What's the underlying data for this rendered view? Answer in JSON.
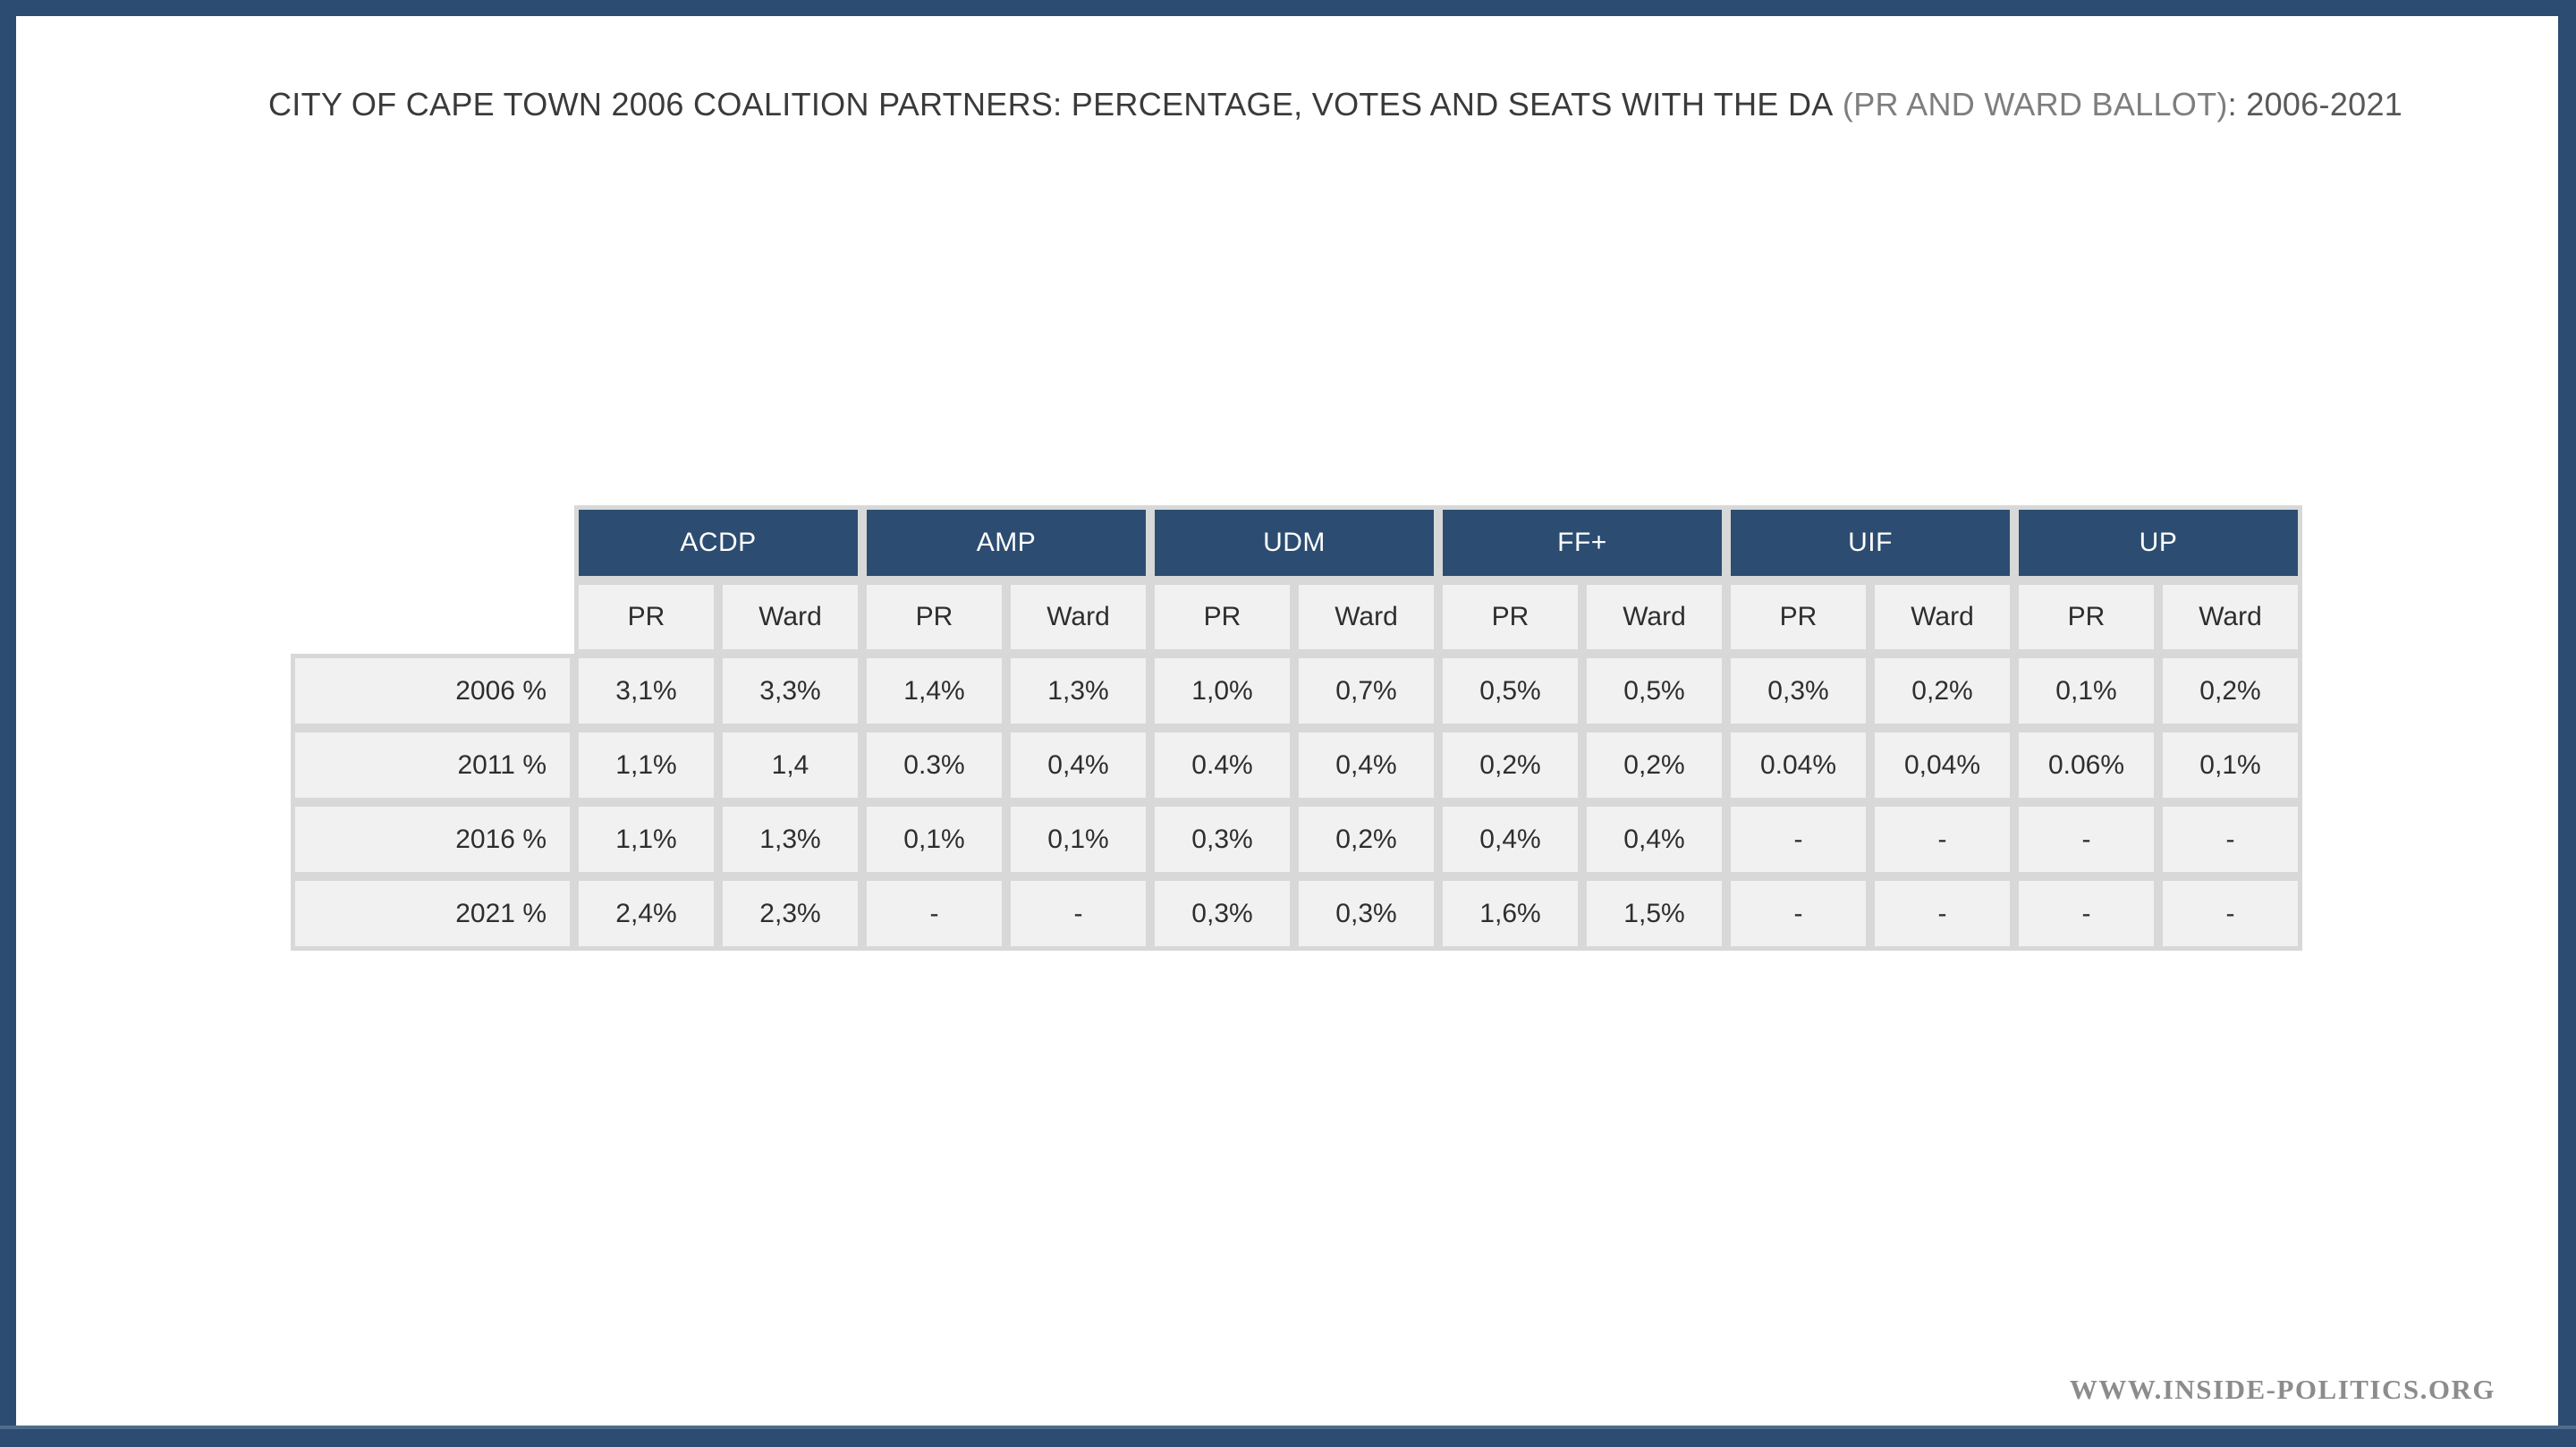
{
  "slide": {
    "title": {
      "main": "CITY OF CAPE TOWN 2006 COALITION PARTNERS: PERCENTAGE, VOTES AND SEATS WITH THE DA",
      "muted": " (PR AND WARD BALLOT)",
      "suffix": ": 2006-2021"
    },
    "watermark": "WWW.INSIDE-POLITICS.ORG"
  },
  "colors": {
    "frame_navy": "#2C4D71",
    "frame_bottom_highlight": "#4E6C8C",
    "header_navy": "#2C4D71",
    "grid_grout": "#D8D8D8",
    "cell_bg": "#F1F1F1",
    "title_dark": "#3A3A3C",
    "title_muted": "#7E7E7E",
    "title_suffix": "#58585A",
    "cell_text": "#2E2E2E",
    "watermark_gray": "#8C8C8C"
  },
  "chart_data": {
    "type": "table",
    "title": "CITY OF CAPE TOWN 2006 COALITION PARTNERS: PERCENTAGE, VOTES AND SEATS WITH THE DA (PR AND WARD BALLOT): 2006-2021",
    "party_groups": [
      "ACDP",
      "AMP",
      "UDM",
      "FF+",
      "UIF",
      "UP"
    ],
    "sub_columns": [
      "PR",
      "Ward"
    ],
    "row_labels": [
      "2006 %",
      "2011 %",
      "2016 %",
      "2021 %"
    ],
    "rows": [
      [
        "3,1%",
        "3,3%",
        "1,4%",
        "1,3%",
        "1,0%",
        "0,7%",
        "0,5%",
        "0,5%",
        "0,3%",
        "0,2%",
        "0,1%",
        "0,2%"
      ],
      [
        "1,1%",
        "1,4",
        "0.3%",
        "0,4%",
        "0.4%",
        "0,4%",
        "0,2%",
        "0,2%",
        "0.04%",
        "0,04%",
        "0.06%",
        "0,1%"
      ],
      [
        "1,1%",
        "1,3%",
        "0,1%",
        "0,1%",
        "0,3%",
        "0,2%",
        "0,4%",
        "0,4%",
        "-",
        "-",
        "-",
        "-"
      ],
      [
        "2,4%",
        "2,3%",
        "-",
        "-",
        "0,3%",
        "0,3%",
        "1,6%",
        "1,5%",
        "-",
        "-",
        "-",
        "-"
      ]
    ]
  }
}
